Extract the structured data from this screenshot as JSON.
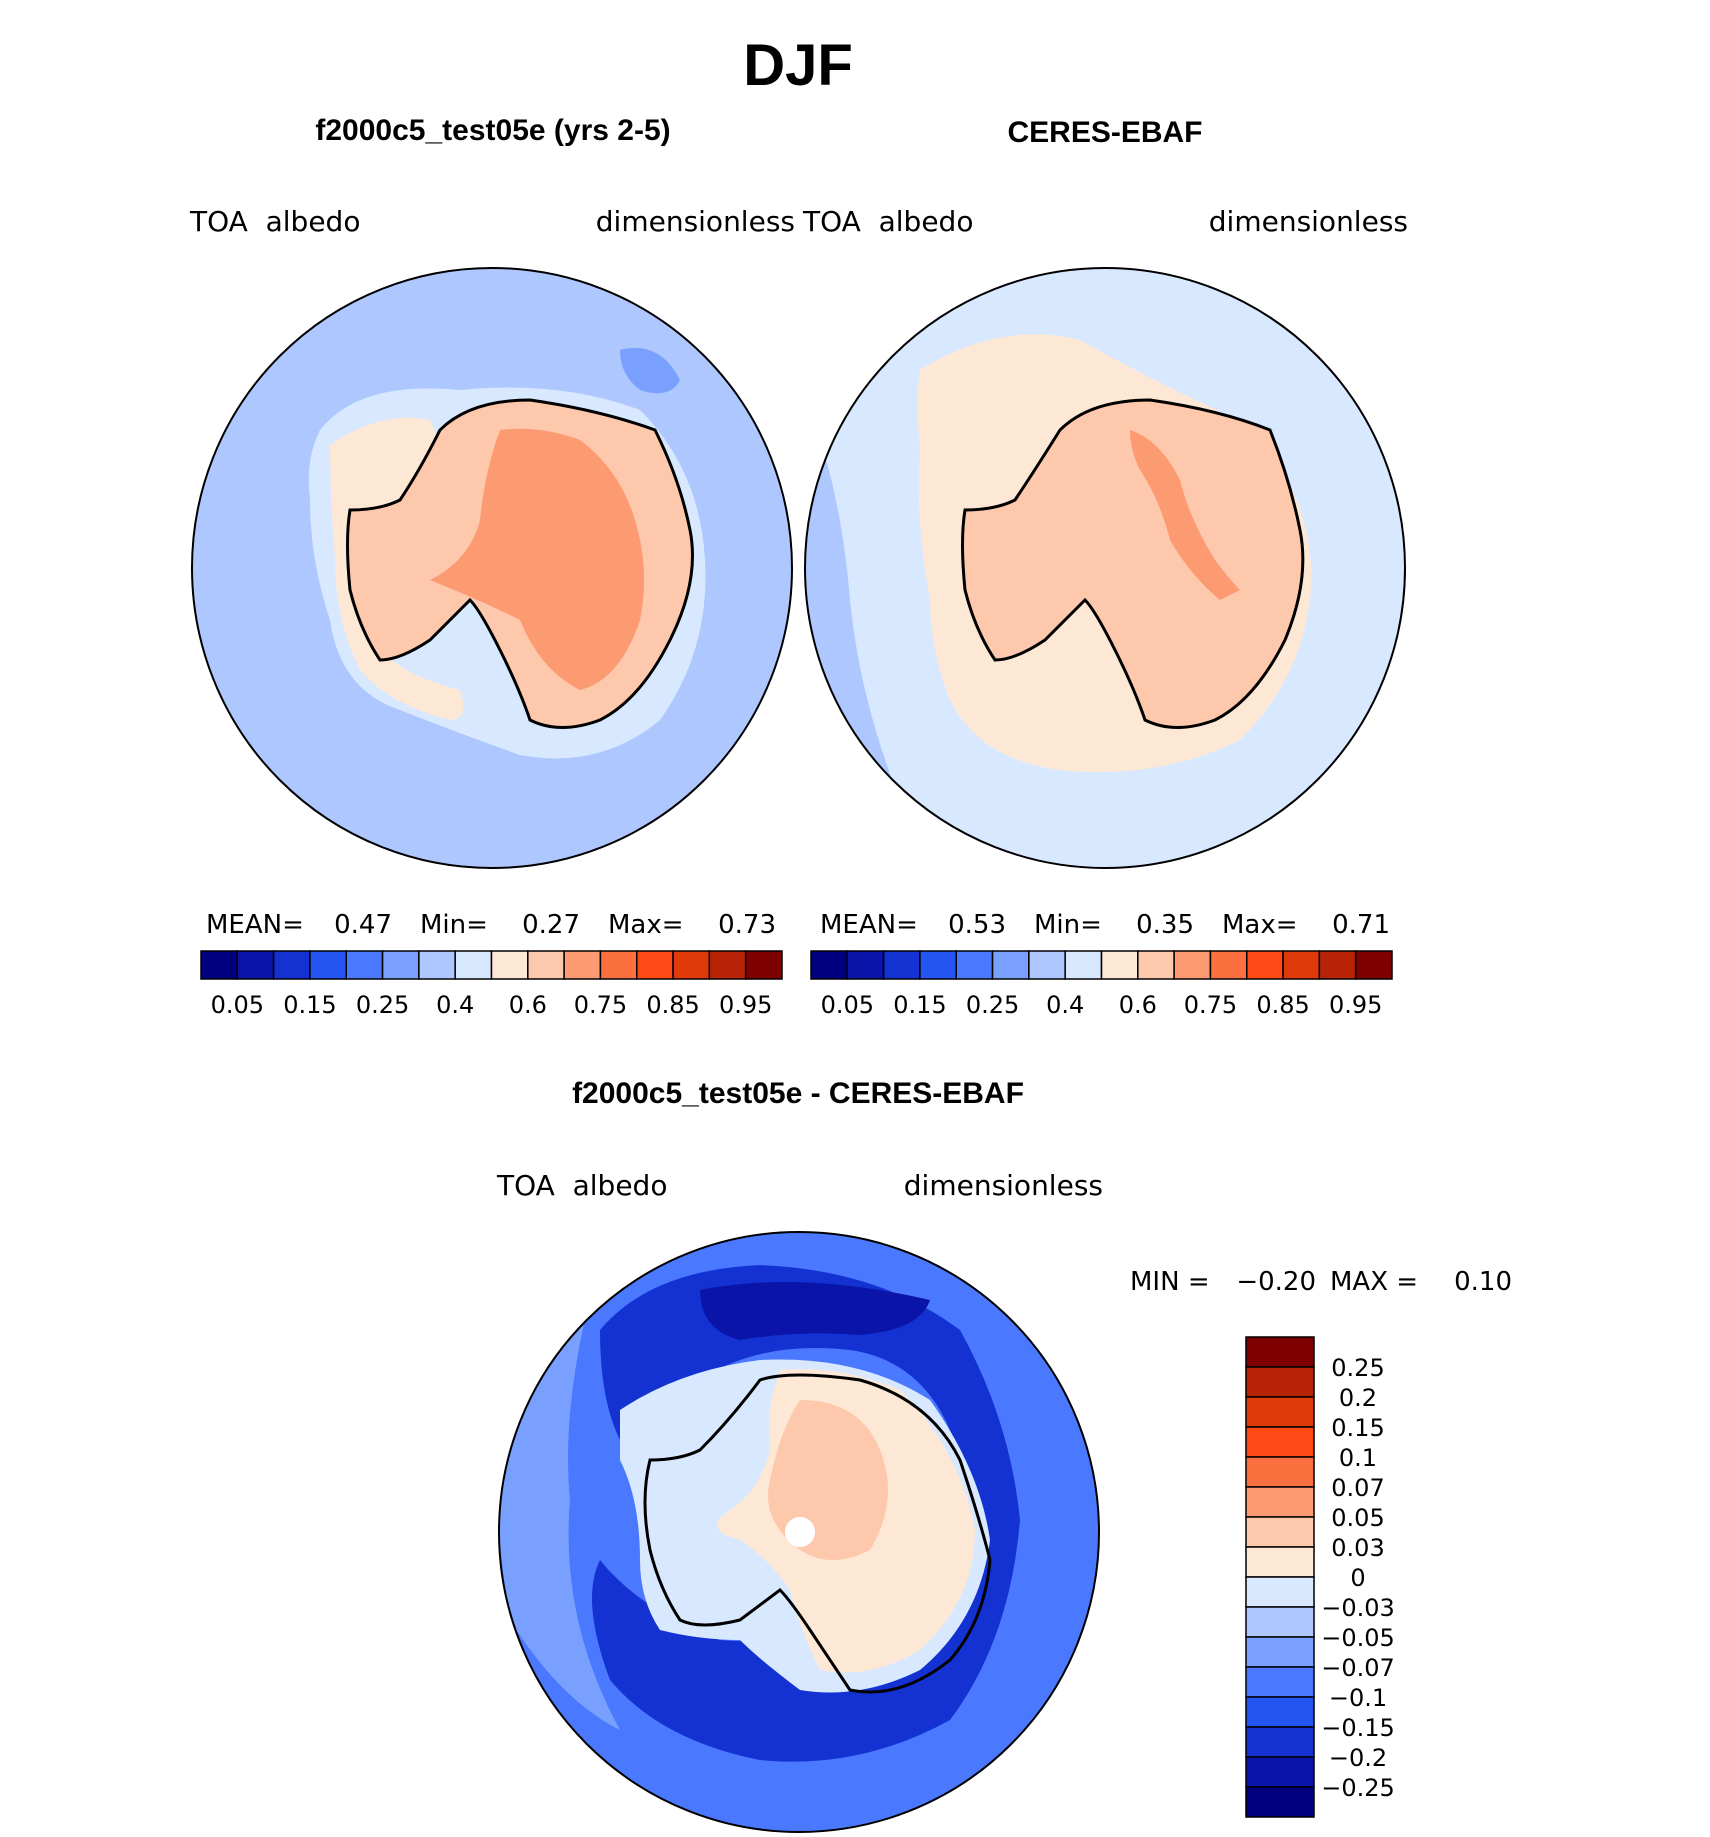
{
  "main_title": "DJF",
  "panels": {
    "left": {
      "title": "f2000c5_test05e (yrs 2-5)",
      "var_left": "TOA  albedo",
      "var_right": "dimensionless",
      "stats": {
        "mean_label": "MEAN=",
        "mean": "0.47",
        "min_label": "Min=",
        "min": "0.27",
        "max_label": "Max=",
        "max": "0.73"
      }
    },
    "right": {
      "title": "CERES-EBAF",
      "var_left": "TOA  albedo",
      "var_right": "dimensionless",
      "stats": {
        "mean_label": "MEAN=",
        "mean": "0.53",
        "min_label": "Min=",
        "min": "0.35",
        "max_label": "Max=",
        "max": "0.71"
      }
    },
    "diff": {
      "title": "f2000c5_test05e - CERES-EBAF",
      "var_left": "TOA  albedo",
      "var_right": "dimensionless",
      "minmax": {
        "min_label": "MIN =",
        "min": "−0.20",
        "max_label": "MAX =",
        "max": "0.10"
      }
    }
  },
  "colorbar_abs": {
    "colors": [
      "#00007f",
      "#0a14a8",
      "#1432d2",
      "#2454f2",
      "#4a78ff",
      "#7aa0ff",
      "#aec8ff",
      "#d8e8ff",
      "#fde8d6",
      "#fdc8ac",
      "#fc9a72",
      "#fc7040",
      "#ff4a16",
      "#e03a0a",
      "#b82206",
      "#7f0000"
    ],
    "labels": [
      "0.05",
      "0.15",
      "0.25",
      "0.4",
      "0.6",
      "0.75",
      "0.85",
      "0.95"
    ]
  },
  "colorbar_diff": {
    "colors": [
      "#7f0000",
      "#b82206",
      "#e03a0a",
      "#ff4a16",
      "#fc7040",
      "#fc9a72",
      "#fdc8ac",
      "#fde8d6",
      "#d8e8ff",
      "#aec8ff",
      "#7aa0ff",
      "#4a78ff",
      "#2454f2",
      "#1432d2",
      "#0a14a8",
      "#00007f"
    ],
    "labels": [
      "0.25",
      "0.2",
      "0.15",
      "0.1",
      "0.07",
      "0.05",
      "0.03",
      "0",
      "−0.03",
      "−0.05",
      "−0.07",
      "−0.1",
      "−0.15",
      "−0.2",
      "−0.25"
    ]
  }
}
